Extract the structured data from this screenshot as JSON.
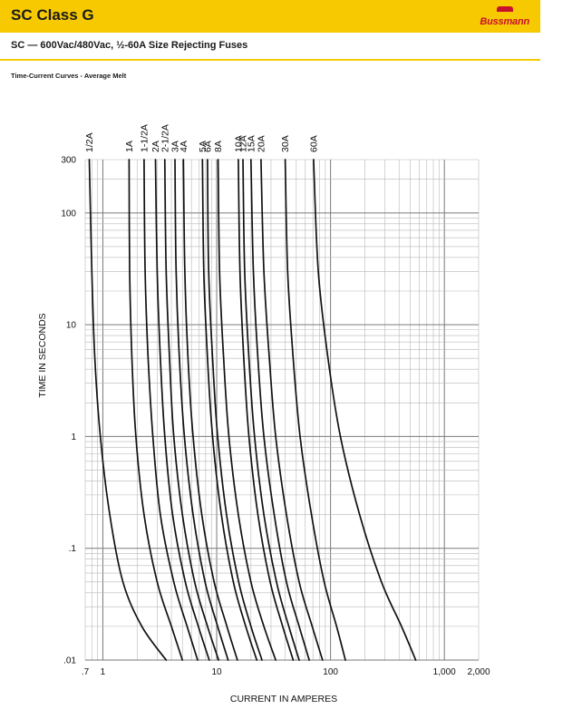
{
  "header": {
    "title": "SC Class G",
    "brand": "Bussmann",
    "subtitle": "SC — 600Vac/480Vac, ½-60A Size Rejecting Fuses",
    "section": "Time-Current Curves - Average Melt",
    "banner_color": "#f7c900"
  },
  "chart_data": {
    "type": "line",
    "title": "",
    "xlabel": "CURRENT  IN AMPERES",
    "ylabel": "TIME IN SECONDS",
    "xscale": "log",
    "yscale": "log",
    "xlim": [
      0.7,
      2000
    ],
    "ylim": [
      0.01,
      300
    ],
    "grid": true,
    "x_ticks": [
      {
        "value": 0.7,
        "label": ".7"
      },
      {
        "value": 1,
        "label": "1"
      },
      {
        "value": 10,
        "label": "10"
      },
      {
        "value": 100,
        "label": "100"
      },
      {
        "value": 1000,
        "label": "1,000"
      },
      {
        "value": 2000,
        "label": "2,000"
      }
    ],
    "y_ticks": [
      {
        "value": 0.01,
        "label": ".01"
      },
      {
        "value": 0.1,
        "label": ".1"
      },
      {
        "value": 1,
        "label": "1"
      },
      {
        "value": 10,
        "label": "10"
      },
      {
        "value": 100,
        "label": "100"
      },
      {
        "value": 300,
        "label": "300"
      }
    ],
    "series": [
      {
        "name": "1/2A",
        "points": [
          [
            0.76,
            300
          ],
          [
            0.8,
            30
          ],
          [
            0.85,
            5
          ],
          [
            0.95,
            1
          ],
          [
            1.15,
            0.2
          ],
          [
            1.5,
            0.05
          ],
          [
            2.2,
            0.02
          ],
          [
            3.6,
            0.01
          ]
        ]
      },
      {
        "name": "1A",
        "points": [
          [
            1.7,
            300
          ],
          [
            1.72,
            30
          ],
          [
            1.8,
            5
          ],
          [
            1.95,
            1
          ],
          [
            2.3,
            0.2
          ],
          [
            3.0,
            0.05
          ],
          [
            4.0,
            0.02
          ],
          [
            5.0,
            0.01
          ]
        ]
      },
      {
        "name": "1-1/2A",
        "points": [
          [
            2.3,
            300
          ],
          [
            2.35,
            30
          ],
          [
            2.5,
            5
          ],
          [
            2.75,
            1
          ],
          [
            3.2,
            0.2
          ],
          [
            4.2,
            0.05
          ],
          [
            5.5,
            0.02
          ],
          [
            6.8,
            0.01
          ]
        ]
      },
      {
        "name": "2A",
        "points": [
          [
            2.9,
            300
          ],
          [
            3.0,
            30
          ],
          [
            3.2,
            5
          ],
          [
            3.5,
            1
          ],
          [
            4.1,
            0.2
          ],
          [
            5.3,
            0.05
          ],
          [
            6.9,
            0.02
          ],
          [
            8.6,
            0.01
          ]
        ]
      },
      {
        "name": "2-1/2A",
        "points": [
          [
            3.5,
            300
          ],
          [
            3.6,
            30
          ],
          [
            3.85,
            5
          ],
          [
            4.2,
            1
          ],
          [
            5.0,
            0.2
          ],
          [
            6.4,
            0.05
          ],
          [
            8.3,
            0.02
          ],
          [
            10.4,
            0.01
          ]
        ]
      },
      {
        "name": "3A",
        "points": [
          [
            4.3,
            300
          ],
          [
            4.4,
            30
          ],
          [
            4.7,
            5
          ],
          [
            5.2,
            1
          ],
          [
            6.2,
            0.2
          ],
          [
            7.9,
            0.05
          ],
          [
            10.2,
            0.02
          ],
          [
            12.6,
            0.01
          ]
        ]
      },
      {
        "name": "4A",
        "points": [
          [
            5.1,
            300
          ],
          [
            5.25,
            30
          ],
          [
            5.6,
            5
          ],
          [
            6.2,
            1
          ],
          [
            7.4,
            0.2
          ],
          [
            9.5,
            0.05
          ],
          [
            12.3,
            0.02
          ],
          [
            15.2,
            0.01
          ]
        ]
      },
      {
        "name": "5A",
        "points": [
          [
            7.5,
            300
          ],
          [
            7.7,
            30
          ],
          [
            8.3,
            5
          ],
          [
            9.2,
            1
          ],
          [
            11.0,
            0.2
          ],
          [
            14.0,
            0.05
          ],
          [
            18.0,
            0.02
          ],
          [
            22.5,
            0.01
          ]
        ]
      },
      {
        "name": "6A",
        "points": [
          [
            8.3,
            300
          ],
          [
            8.5,
            30
          ],
          [
            9.2,
            5
          ],
          [
            10.2,
            1
          ],
          [
            12.2,
            0.2
          ],
          [
            15.6,
            0.05
          ],
          [
            20.0,
            0.02
          ],
          [
            25.0,
            0.01
          ]
        ]
      },
      {
        "name": "8A",
        "points": [
          [
            10.3,
            300
          ],
          [
            10.6,
            30
          ],
          [
            11.5,
            5
          ],
          [
            12.8,
            1
          ],
          [
            15.5,
            0.2
          ],
          [
            20.0,
            0.05
          ],
          [
            26.0,
            0.02
          ],
          [
            33.0,
            0.01
          ]
        ]
      },
      {
        "name": "10A",
        "points": [
          [
            15.5,
            300
          ],
          [
            16.0,
            30
          ],
          [
            17.3,
            5
          ],
          [
            19.2,
            1
          ],
          [
            23.0,
            0.2
          ],
          [
            29.5,
            0.05
          ],
          [
            38.0,
            0.02
          ],
          [
            47.0,
            0.01
          ]
        ]
      },
      {
        "name": "12A",
        "points": [
          [
            17.0,
            300
          ],
          [
            17.6,
            30
          ],
          [
            19.2,
            5
          ],
          [
            21.5,
            1
          ],
          [
            26.0,
            0.2
          ],
          [
            33.5,
            0.05
          ],
          [
            43.0,
            0.02
          ],
          [
            53.0,
            0.01
          ]
        ]
      },
      {
        "name": "15A",
        "points": [
          [
            20.0,
            300
          ],
          [
            21.0,
            30
          ],
          [
            23.0,
            5
          ],
          [
            26.0,
            1
          ],
          [
            32.0,
            0.2
          ],
          [
            41.0,
            0.05
          ],
          [
            53.0,
            0.02
          ],
          [
            65.0,
            0.01
          ]
        ]
      },
      {
        "name": "20A",
        "points": [
          [
            24.5,
            300
          ],
          [
            26.0,
            30
          ],
          [
            29.0,
            5
          ],
          [
            33.0,
            1
          ],
          [
            41.0,
            0.2
          ],
          [
            53.0,
            0.05
          ],
          [
            69.0,
            0.02
          ],
          [
            85.0,
            0.01
          ]
        ]
      },
      {
        "name": "30A",
        "points": [
          [
            40.0,
            300
          ],
          [
            42.0,
            30
          ],
          [
            47.0,
            5
          ],
          [
            54.0,
            1
          ],
          [
            68.0,
            0.2
          ],
          [
            88.0,
            0.05
          ],
          [
            113.0,
            0.02
          ],
          [
            135.0,
            0.01
          ]
        ]
      },
      {
        "name": "60A",
        "points": [
          [
            71.0,
            300
          ],
          [
            78.0,
            30
          ],
          [
            95.0,
            5
          ],
          [
            122.0,
            1
          ],
          [
            180.0,
            0.2
          ],
          [
            280.0,
            0.05
          ],
          [
            420.0,
            0.02
          ],
          [
            560.0,
            0.01
          ]
        ]
      }
    ]
  }
}
